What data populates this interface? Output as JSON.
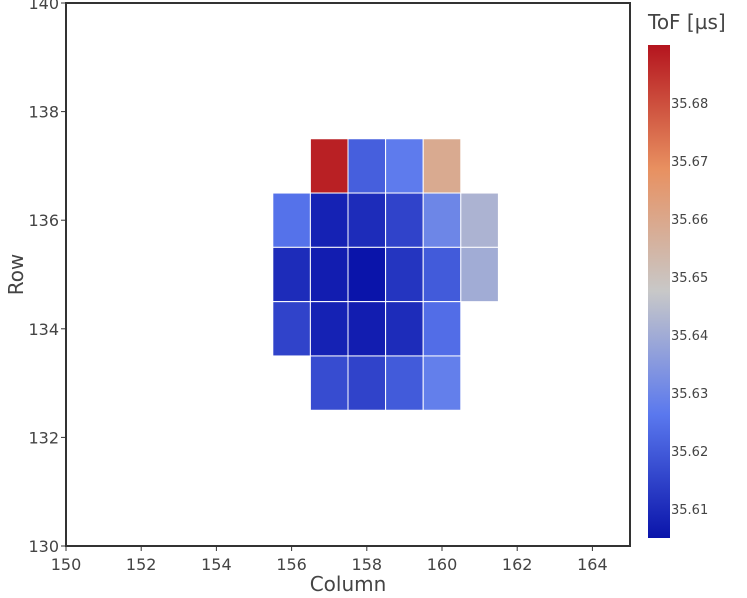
{
  "chart_data": {
    "type": "heatmap",
    "title": "",
    "xlabel": "Column",
    "ylabel": "Row",
    "xlim": [
      150,
      165
    ],
    "ylim": [
      130,
      140
    ],
    "x_ticks": [
      150,
      152,
      154,
      156,
      158,
      160,
      162,
      164
    ],
    "y_ticks": [
      130,
      132,
      134,
      136,
      138,
      140
    ],
    "colorbar": {
      "title": "ToF [µs]",
      "range": [
        35.605,
        35.69
      ],
      "ticks": [
        35.61,
        35.62,
        35.63,
        35.64,
        35.65,
        35.66,
        35.67,
        35.68
      ],
      "colorscale": [
        "#0a14aa",
        "#5a78ee",
        "#c8c8c8",
        "#e89060",
        "#b4141e"
      ]
    },
    "cells": [
      {
        "col": 157,
        "row": 137,
        "value": 35.688
      },
      {
        "col": 158,
        "row": 137,
        "value": 35.621
      },
      {
        "col": 159,
        "row": 137,
        "value": 35.627
      },
      {
        "col": 160,
        "row": 137,
        "value": 35.659
      },
      {
        "col": 156,
        "row": 136,
        "value": 35.625
      },
      {
        "col": 157,
        "row": 136,
        "value": 35.608
      },
      {
        "col": 158,
        "row": 136,
        "value": 35.61
      },
      {
        "col": 159,
        "row": 136,
        "value": 35.615
      },
      {
        "col": 160,
        "row": 136,
        "value": 35.63
      },
      {
        "col": 161,
        "row": 136,
        "value": 35.642
      },
      {
        "col": 156,
        "row": 135,
        "value": 35.61
      },
      {
        "col": 157,
        "row": 135,
        "value": 35.607
      },
      {
        "col": 158,
        "row": 135,
        "value": 35.605
      },
      {
        "col": 159,
        "row": 135,
        "value": 35.612
      },
      {
        "col": 160,
        "row": 135,
        "value": 35.62
      },
      {
        "col": 161,
        "row": 135,
        "value": 35.64
      },
      {
        "col": 156,
        "row": 134,
        "value": 35.615
      },
      {
        "col": 157,
        "row": 134,
        "value": 35.608
      },
      {
        "col": 158,
        "row": 134,
        "value": 35.607
      },
      {
        "col": 159,
        "row": 134,
        "value": 35.61
      },
      {
        "col": 160,
        "row": 134,
        "value": 35.624
      },
      {
        "col": 157,
        "row": 133,
        "value": 35.617
      },
      {
        "col": 158,
        "row": 133,
        "value": 35.615
      },
      {
        "col": 159,
        "row": 133,
        "value": 35.62
      },
      {
        "col": 160,
        "row": 133,
        "value": 35.628
      }
    ]
  }
}
